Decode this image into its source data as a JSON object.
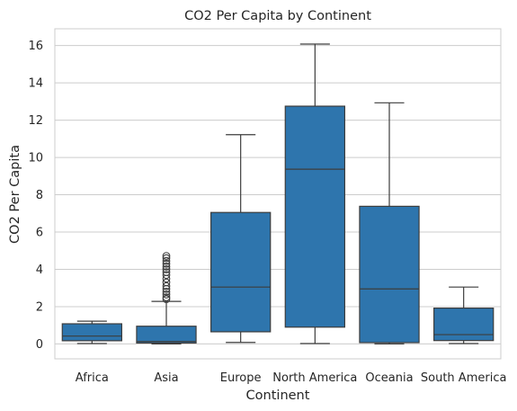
{
  "chart_data": {
    "type": "box",
    "title": "CO2 Per Capita by Continent",
    "xlabel": "Continent",
    "ylabel": "CO2 Per Capita",
    "ylim": [
      -0.8,
      16.9
    ],
    "yticks": [
      0,
      2,
      4,
      6,
      8,
      10,
      12,
      14,
      16
    ],
    "grid": "horizontal",
    "color": "#2e75ad",
    "categories": [
      "Africa",
      "Asia",
      "Europe",
      "North America",
      "Oceania",
      "South America"
    ],
    "boxes": [
      {
        "whisker_low": 0.02,
        "q1": 0.17,
        "median": 0.42,
        "q3": 1.08,
        "whisker_high": 1.22,
        "outliers": []
      },
      {
        "whisker_low": 0.0,
        "q1": 0.05,
        "median": 0.13,
        "q3": 0.95,
        "whisker_high": 2.28,
        "outliers": [
          2.4,
          2.5,
          2.65,
          2.8,
          2.95,
          3.1,
          3.3,
          3.5,
          3.7,
          3.85,
          4.0,
          4.15,
          4.3,
          4.45,
          4.6,
          4.72
        ]
      },
      {
        "whisker_low": 0.08,
        "q1": 0.65,
        "median": 3.05,
        "q3": 7.05,
        "whisker_high": 11.22,
        "outliers": []
      },
      {
        "whisker_low": 0.02,
        "q1": 0.9,
        "median": 9.37,
        "q3": 12.75,
        "whisker_high": 16.08,
        "outliers": []
      },
      {
        "whisker_low": 0.0,
        "q1": 0.07,
        "median": 2.95,
        "q3": 7.38,
        "whisker_high": 12.93,
        "outliers": []
      },
      {
        "whisker_low": 0.02,
        "q1": 0.18,
        "median": 0.5,
        "q3": 1.92,
        "whisker_high": 3.05,
        "outliers": []
      }
    ]
  }
}
